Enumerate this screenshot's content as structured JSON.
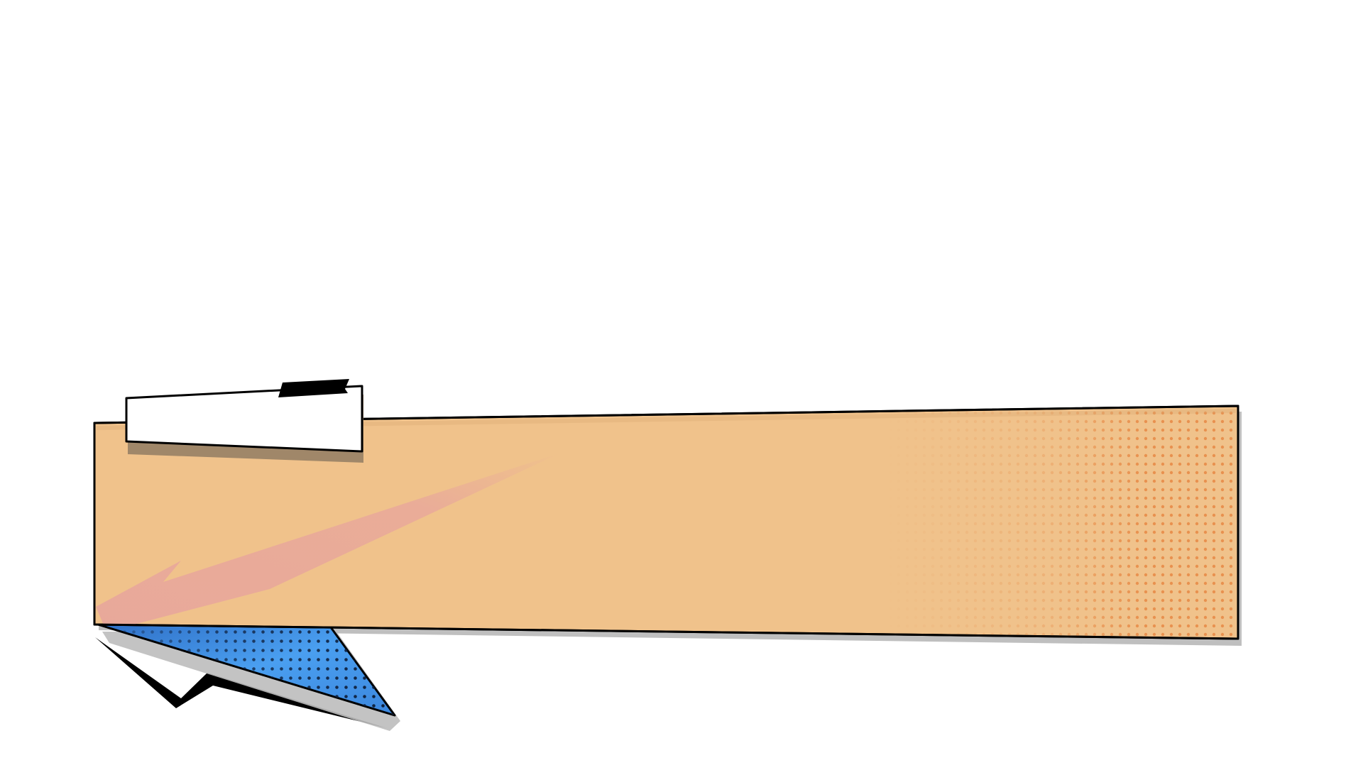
{
  "colors": {
    "background": "#ffffff",
    "banner_fill": "#f0c28b",
    "banner_outline": "#000000",
    "halftone_dot": "#e8914f",
    "streak": "#e8a79b",
    "tag_fill": "#ffffff",
    "tag_shadow": "#a08769",
    "shard_fill_light": "#4a9ff0",
    "shard_fill_dark": "#2f6fc6",
    "shard_dot": "#0d1e3a",
    "shadow": "#b4b4b4",
    "ink": "#000000"
  },
  "elements": {
    "banner": "comic-lower-third-banner",
    "tag": "blank-name-tag",
    "shard": "halftone-shard",
    "streak": "speed-streak",
    "lightning": "lightning-bolt-accent"
  }
}
